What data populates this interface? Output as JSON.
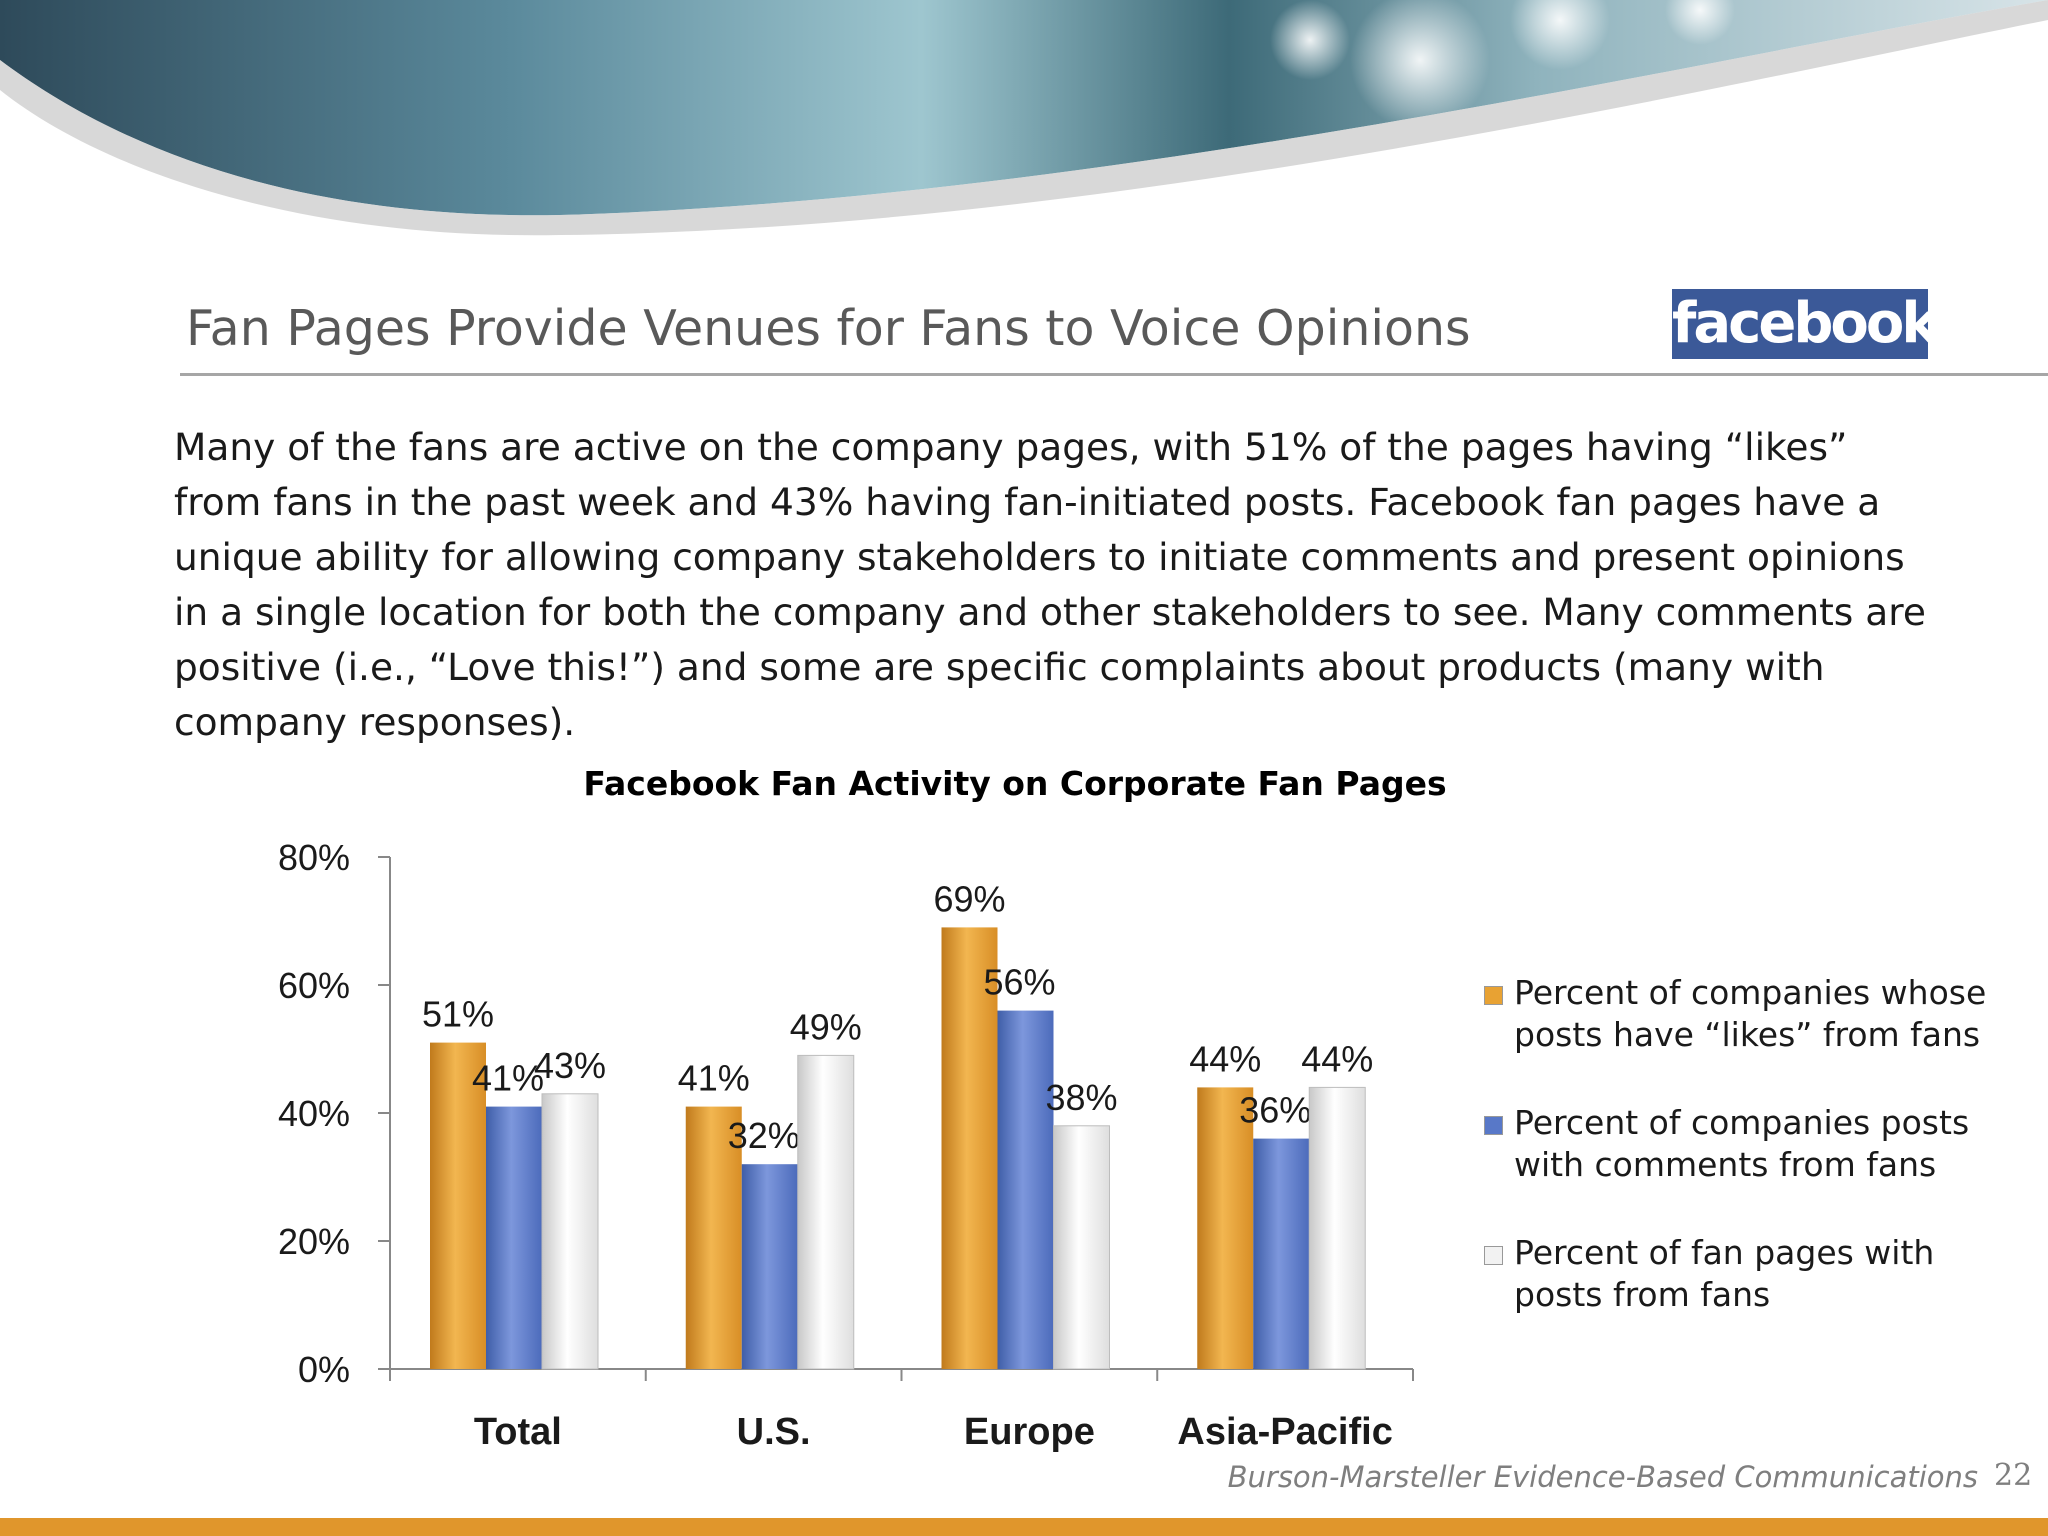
{
  "slide": {
    "title": "Fan Pages Provide Venues for Fans to Voice Opinions",
    "logo_text": "facebook",
    "body": "Many of the fans are active on the company pages, with 51% of the pages having “likes” from fans in the past week and 43% having fan-initiated posts. Facebook fan pages have a unique ability for allowing company stakeholders to initiate comments and present opinions in a single location for both the company and other stakeholders to see.   Many comments are positive (i.e., “Love this!”) and some are specific complaints about products (many with company responses).",
    "footer": "Burson-Marsteller Evidence-Based Communications",
    "page_number": "22"
  },
  "colors": {
    "accent_orange": "#e0962c",
    "series_orange": "#e8a233",
    "series_blue": "#5878c8",
    "series_white": "#f2f2f2",
    "facebook_blue": "#3b5998"
  },
  "chart_data": {
    "type": "bar",
    "title": "Facebook Fan Activity on Corporate Fan Pages",
    "categories": [
      "Total",
      "U.S.",
      "Europe",
      "Asia-Pacific"
    ],
    "series": [
      {
        "name": "Percent of companies whose posts have “likes” from fans",
        "values": [
          51,
          41,
          69,
          44
        ],
        "labels": [
          "51%",
          "41%",
          "69%",
          "44%"
        ]
      },
      {
        "name": "Percent of companies posts with comments from fans",
        "values": [
          41,
          32,
          56,
          36
        ],
        "labels": [
          "41%",
          "32%",
          "56%",
          "36%"
        ]
      },
      {
        "name": "Percent of fan pages with posts from fans",
        "values": [
          43,
          49,
          38,
          44
        ],
        "labels": [
          "43%",
          "49%",
          "38%",
          "44%"
        ]
      }
    ],
    "ylim": [
      0,
      80
    ],
    "yticks": [
      0,
      20,
      40,
      60,
      80
    ],
    "ytick_labels": [
      "0%",
      "20%",
      "40%",
      "60%",
      "80%"
    ],
    "xlabel": "",
    "ylabel": "",
    "grid": false,
    "legend_position": "right"
  }
}
